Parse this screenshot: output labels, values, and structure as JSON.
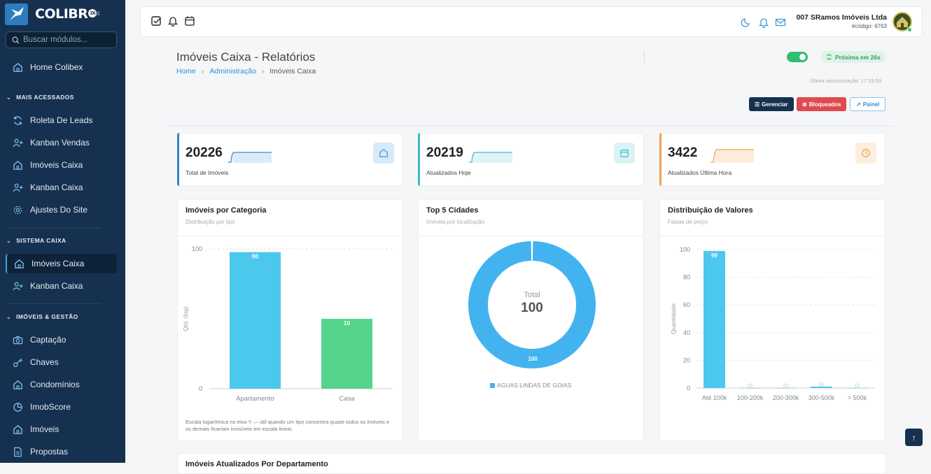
{
  "app": {
    "logo_text": "COLIBR",
    "logo_badge": "IX"
  },
  "sidebar": {
    "search_placeholder": "Buscar módulos...",
    "home": {
      "label": "Home Colibex",
      "icon": "home-icon"
    },
    "sections": [
      {
        "title": "MAIS ACESSADOS",
        "items": [
          {
            "label": "Roleta De Leads",
            "icon": "refresh-icon"
          },
          {
            "label": "Kanban Vendas",
            "icon": "user-plus-icon"
          },
          {
            "label": "Imóveis Caixa",
            "icon": "home-icon"
          },
          {
            "label": "Kanban Caixa",
            "icon": "user-plus-icon"
          },
          {
            "label": "Ajustes Do Site",
            "icon": "gear-icon"
          }
        ]
      },
      {
        "title": "SISTEMA CAIXA",
        "items": [
          {
            "label": "Imóveis Caixa",
            "icon": "home-icon",
            "active": true
          },
          {
            "label": "Kanban Caixa",
            "icon": "user-plus-icon"
          }
        ]
      },
      {
        "title": "IMÓVEIS & GESTÃO",
        "items": [
          {
            "label": "Captação",
            "icon": "camera-icon"
          },
          {
            "label": "Chaves",
            "icon": "key-icon"
          },
          {
            "label": "Condomínios",
            "icon": "home-icon"
          },
          {
            "label": "ImobScore",
            "icon": "pie-icon"
          },
          {
            "label": "Imóveis",
            "icon": "home-icon"
          },
          {
            "label": "Propostas",
            "icon": "document-icon"
          }
        ]
      }
    ]
  },
  "topbar": {
    "company_name": "007 SRamos Imóveis Ltda",
    "company_code": "#código: 6763"
  },
  "page": {
    "title": "Imóveis Caixa - Relatórios",
    "breadcrumb": [
      "Home",
      "Administração",
      "Imóveis Caixa"
    ],
    "auto_refresh_enabled": true,
    "next_refresh": "Próxima em 26s",
    "last_sync": "Última sincronização: 17:15:59",
    "buttons": {
      "manage": "Gerenciar",
      "blocked": "Bloqueados",
      "panel": "Painel"
    }
  },
  "stats": [
    {
      "value": "20226",
      "label": "Total de Imóveis",
      "color": "#3b82c4",
      "icon": "home-icon"
    },
    {
      "value": "20219",
      "label": "Atualizados Hoje",
      "color": "#3fb8c9",
      "icon": "calendar-icon"
    },
    {
      "value": "3422",
      "label": "Atualizados Última Hora",
      "color": "#f0a04b",
      "icon": "clock-icon"
    }
  ],
  "charts": {
    "category": {
      "title": "Imóveis por Categoria",
      "subtitle": "Distribuição por tipo",
      "footnote": "Escala logarítmica no eixo Y — útil quando um tipo concentra quase todos os imóveis e os demais ficariam invisíveis em escala linear."
    },
    "cities": {
      "title": "Top 5 Cidades",
      "subtitle": "Imóveis por localização",
      "center_label": "Total",
      "center_value": "100"
    },
    "values": {
      "title": "Distribuição de Valores",
      "subtitle": "Faixas de preço"
    }
  },
  "chart_data": [
    {
      "type": "bar",
      "title": "Imóveis por Categoria",
      "categories": [
        "Apartamento",
        "Casa"
      ],
      "values": [
        90,
        10
      ],
      "ylabel": "Qtd. (log)",
      "yticks": [
        "100",
        "0"
      ],
      "y_scale": "log",
      "colors": [
        "#4cc8ef",
        "#55d48c"
      ]
    },
    {
      "type": "pie",
      "title": "Top 5 Cidades",
      "categories": [
        "AGUAS LINDAS DE GOIAS"
      ],
      "values": [
        100
      ],
      "colors": [
        "#43b3f0"
      ]
    },
    {
      "type": "bar",
      "title": "Distribuição de Valores",
      "categories": [
        "Até 100k",
        "100-200k",
        "200-300k",
        "300-500k",
        "> 500k"
      ],
      "values": [
        99,
        0,
        0,
        1,
        0
      ],
      "ylabel": "Quantidade",
      "ylim": [
        0,
        100
      ],
      "yticks": [
        "0",
        "20",
        "40",
        "60",
        "80",
        "100"
      ],
      "colors": [
        "#4cc8ef"
      ]
    }
  ],
  "bottom_card": {
    "title": "Imóveis Atualizados Por Departamento"
  }
}
